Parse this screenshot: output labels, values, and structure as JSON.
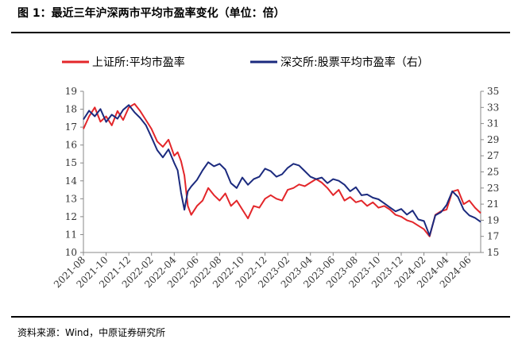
{
  "header": {
    "title": "图 1：最近三年沪深两市平均市盈率变化（单位：倍）"
  },
  "footer": {
    "source": "资料来源：Wind，中原证券研究所"
  },
  "chart_data": {
    "type": "line",
    "title": "",
    "xlabel": "",
    "ylabel": "",
    "left_axis": {
      "min": 10,
      "max": 19,
      "ticks": [
        10,
        11,
        12,
        13,
        14,
        15,
        16,
        17,
        18,
        19
      ]
    },
    "right_axis": {
      "min": 15,
      "max": 35,
      "ticks": [
        15,
        17,
        19,
        21,
        23,
        25,
        27,
        29,
        31,
        33,
        35
      ]
    },
    "x_tick_labels": [
      "2021-08",
      "2021-10",
      "2021-12",
      "2022-02",
      "2022-04",
      "2022-06",
      "2022-08",
      "2022-10",
      "2022-12",
      "2023-02",
      "2023-04",
      "2023-06",
      "2023-08",
      "2023-10",
      "2023-12",
      "2024-02",
      "2024-04",
      "2024-06"
    ],
    "legend": {
      "position": "top",
      "entries": [
        "上证所:平均市盈率",
        "深交所:股票平均市盈率（右）"
      ]
    },
    "grid": false,
    "colors": {
      "sh": "#e3262a",
      "sz": "#1b2a7e"
    },
    "series": [
      {
        "name": "上证所:平均市盈率",
        "axis": "left",
        "x": [
          0,
          0.5,
          1,
          1.5,
          2,
          2.5,
          3,
          3.5,
          4,
          4.5,
          5,
          5.5,
          6,
          6.5,
          7,
          7.5,
          8,
          8.3,
          8.6,
          8.9,
          9.2,
          9.5,
          10,
          10.5,
          11,
          11.5,
          12,
          12.5,
          13,
          13.5,
          14,
          14.5,
          15,
          15.5,
          16,
          16.5,
          17,
          17.5,
          18,
          18.5,
          19,
          19.5,
          20,
          20.5,
          21,
          21.5,
          22,
          22.5,
          23,
          23.5,
          24,
          24.5,
          25,
          25.5,
          26,
          26.5,
          27,
          27.5,
          28,
          28.5,
          29,
          29.5,
          30,
          30.5,
          31,
          31.5,
          32,
          32.5,
          33,
          33.5,
          34,
          34.5,
          35
        ],
        "values": [
          16.9,
          17.6,
          18.1,
          17.3,
          17.6,
          17.1,
          17.9,
          17.4,
          18.1,
          18.3,
          17.9,
          17.4,
          16.9,
          16.2,
          15.9,
          16.3,
          15.4,
          15.6,
          15.1,
          14.3,
          12.6,
          12.1,
          12.6,
          12.9,
          13.6,
          13.2,
          12.9,
          13.3,
          12.6,
          12.9,
          12.4,
          11.9,
          12.6,
          12.5,
          13.0,
          13.2,
          13.0,
          12.9,
          13.5,
          13.6,
          13.8,
          13.7,
          13.9,
          14.1,
          13.9,
          13.6,
          13.2,
          13.5,
          12.9,
          13.1,
          12.8,
          12.9,
          12.6,
          12.8,
          12.5,
          12.6,
          12.4,
          12.1,
          12.0,
          11.8,
          11.7,
          11.5,
          11.3,
          10.9,
          12.1,
          12.3,
          12.4,
          13.4,
          13.5,
          12.7,
          12.9,
          12.5,
          12.2
        ]
      },
      {
        "name": "深交所:股票平均市盈率（右）",
        "axis": "right",
        "x": [
          0,
          0.5,
          1,
          1.5,
          2,
          2.5,
          3,
          3.5,
          4,
          4.5,
          5,
          5.5,
          6,
          6.5,
          7,
          7.5,
          8,
          8.3,
          8.6,
          8.9,
          9.2,
          9.5,
          10,
          10.5,
          11,
          11.5,
          12,
          12.5,
          13,
          13.5,
          14,
          14.5,
          15,
          15.5,
          16,
          16.5,
          17,
          17.5,
          18,
          18.5,
          19,
          19.5,
          20,
          20.5,
          21,
          21.5,
          22,
          22.5,
          23,
          23.5,
          24,
          24.5,
          25,
          25.5,
          26,
          26.5,
          27,
          27.5,
          28,
          28.5,
          29,
          29.5,
          30,
          30.5,
          31,
          31.5,
          32,
          32.5,
          33,
          33.5,
          34,
          34.5,
          35
        ],
        "values": [
          31.5,
          32.6,
          31.9,
          32.8,
          31.2,
          32.1,
          31.6,
          32.7,
          33.3,
          32.4,
          31.7,
          30.8,
          29.3,
          27.7,
          26.8,
          27.8,
          26.1,
          25.2,
          22.4,
          20.3,
          22.6,
          23.2,
          24.0,
          25.2,
          26.2,
          25.7,
          26.0,
          25.3,
          23.6,
          23.0,
          24.3,
          23.4,
          24.1,
          24.4,
          25.4,
          25.1,
          24.4,
          24.7,
          25.5,
          26.0,
          25.8,
          25.1,
          24.4,
          24.1,
          24.3,
          23.6,
          24.1,
          23.9,
          23.4,
          22.6,
          23.1,
          22.1,
          22.2,
          21.8,
          21.6,
          21.1,
          20.6,
          20.1,
          20.4,
          19.7,
          20.2,
          19.1,
          18.9,
          17.1,
          19.6,
          20.0,
          20.9,
          22.6,
          21.9,
          20.3,
          19.6,
          19.3,
          18.8
        ]
      }
    ]
  }
}
